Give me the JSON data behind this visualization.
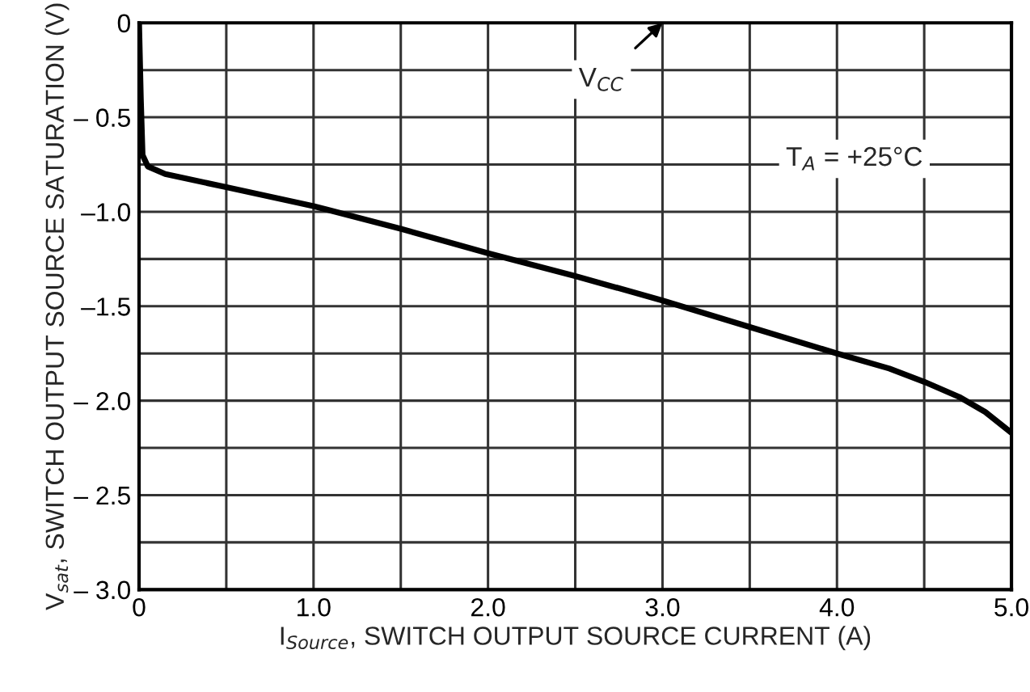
{
  "chart_data": {
    "type": "line",
    "xlabel": "I$_{Source}$, SWITCH OUTPUT SOURCE CURRENT (A)",
    "ylabel": "V$_{sat}$, SWITCH OUTPUT SOURCE SATURATION (V)",
    "annotations": [
      "V$_{CC}$",
      "T$_{A}$ = +25°C"
    ],
    "series": [
      {
        "color": "#000000",
        "x": [
          0,
          0.01,
          0.02,
          0.05,
          0.15,
          0.5,
          1.0,
          1.5,
          2.0,
          2.5,
          3.0,
          3.5,
          4.0,
          4.3,
          4.5,
          4.7,
          4.85,
          5.0
        ],
        "values": [
          0,
          -0.4,
          -0.7,
          -0.76,
          -0.8,
          -0.87,
          -0.97,
          -1.09,
          -1.22,
          -1.34,
          -1.47,
          -1.61,
          -1.75,
          -1.83,
          -1.9,
          -1.98,
          -2.06,
          -2.17
        ]
      }
    ],
    "xlim": [
      0,
      5.0
    ],
    "ylim": [
      -3.0,
      0
    ],
    "xticks": [
      0,
      {
        "value": 0.5,
        "label": null
      },
      {
        "value": 1.0,
        "label": "1.0"
      },
      {
        "value": 1.5,
        "label": null
      },
      {
        "value": 2.0,
        "label": "2.0"
      },
      {
        "value": 2.5,
        "label": null
      },
      {
        "value": 3.0,
        "label": "3.0"
      },
      {
        "value": 3.5,
        "label": null
      },
      {
        "value": 4.0,
        "label": "4.0"
      },
      {
        "value": 4.5,
        "label": null
      },
      {
        "value": 5.0,
        "label": "5.0"
      }
    ],
    "yticks": [
      0,
      {
        "value": -0.25,
        "label": null
      },
      {
        "value": -0.5,
        "label": "– 0.5"
      },
      {
        "value": -0.75,
        "label": null
      },
      {
        "value": -1.0,
        "label": "–1.0"
      },
      {
        "value": -1.25,
        "label": null
      },
      {
        "value": -1.5,
        "label": "–1.5"
      },
      {
        "value": -1.75,
        "label": null
      },
      {
        "value": -2.0,
        "label": "– 2.0"
      },
      {
        "value": -2.25,
        "label": null
      },
      {
        "value": -2.5,
        "label": "– 2.5"
      },
      {
        "value": -2.75,
        "label": null
      },
      {
        "value": -3.0,
        "label": "– 3.0"
      }
    ],
    "grid": true,
    "line_style": "solid"
  }
}
